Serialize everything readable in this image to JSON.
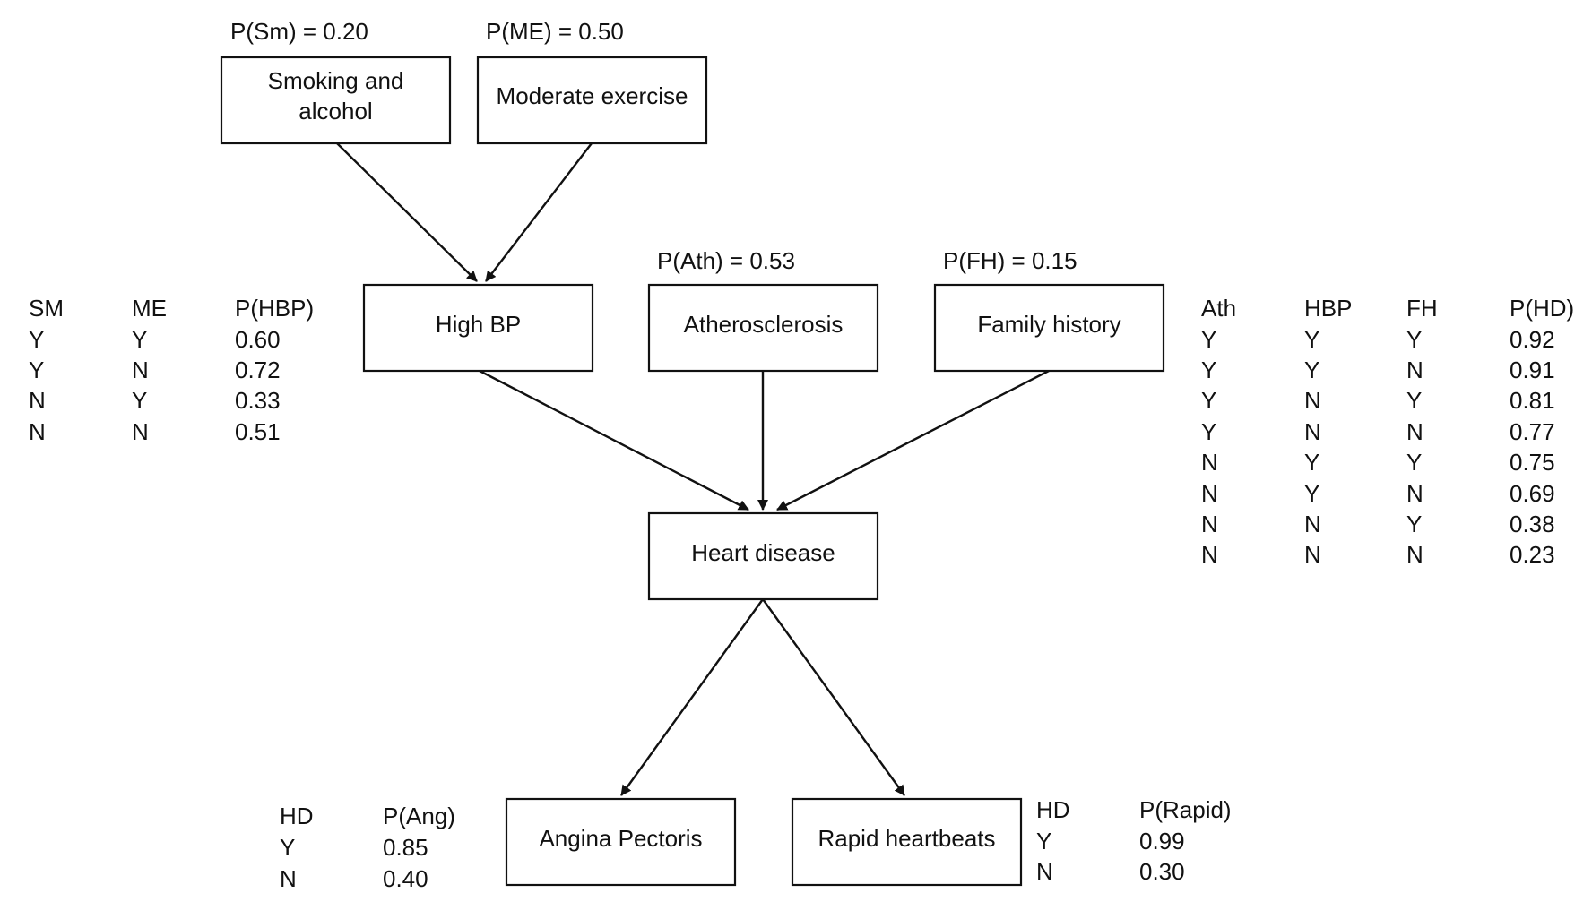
{
  "nodes": {
    "smoking": {
      "lines": [
        "Smoking and",
        "alcohol"
      ]
    },
    "exercise": {
      "lines": [
        "Moderate exercise"
      ]
    },
    "highbp": {
      "lines": [
        "High BP"
      ]
    },
    "atherosclerosis": {
      "lines": [
        "Atherosclerosis"
      ]
    },
    "family": {
      "lines": [
        "Family history"
      ]
    },
    "heart": {
      "lines": [
        "Heart disease"
      ]
    },
    "angina": {
      "lines": [
        "Angina Pectoris"
      ]
    },
    "rapid": {
      "lines": [
        "Rapid heartbeats"
      ]
    }
  },
  "priors": {
    "smoking": "P(Sm) = 0.20",
    "exercise": "P(ME) = 0.50",
    "atherosclerosis": "P(Ath) = 0.53",
    "family": "P(FH) = 0.15"
  },
  "tables": {
    "highbp": {
      "headers": [
        "SM",
        "ME",
        "P(HBP)"
      ],
      "rows": [
        [
          "Y",
          "Y",
          "0.60"
        ],
        [
          "Y",
          "N",
          "0.72"
        ],
        [
          "N",
          "Y",
          "0.33"
        ],
        [
          "N",
          "N",
          "0.51"
        ]
      ]
    },
    "heart": {
      "headers": [
        "Ath",
        "HBP",
        "FH",
        "P(HD)"
      ],
      "rows": [
        [
          "Y",
          "Y",
          "Y",
          "0.92"
        ],
        [
          "Y",
          "Y",
          "N",
          "0.91"
        ],
        [
          "Y",
          "N",
          "Y",
          "0.81"
        ],
        [
          "Y",
          "N",
          "N",
          "0.77"
        ],
        [
          "N",
          "Y",
          "Y",
          "0.75"
        ],
        [
          "N",
          "Y",
          "N",
          "0.69"
        ],
        [
          "N",
          "N",
          "Y",
          "0.38"
        ],
        [
          "N",
          "N",
          "N",
          "0.23"
        ]
      ]
    },
    "angina": {
      "headers": [
        "HD",
        "P(Ang)"
      ],
      "rows": [
        [
          "Y",
          "0.85"
        ],
        [
          "N",
          "0.40"
        ]
      ]
    },
    "rapid": {
      "headers": [
        "HD",
        "P(Rapid)"
      ],
      "rows": [
        [
          "Y",
          "0.99"
        ],
        [
          "N",
          "0.30"
        ]
      ]
    }
  }
}
